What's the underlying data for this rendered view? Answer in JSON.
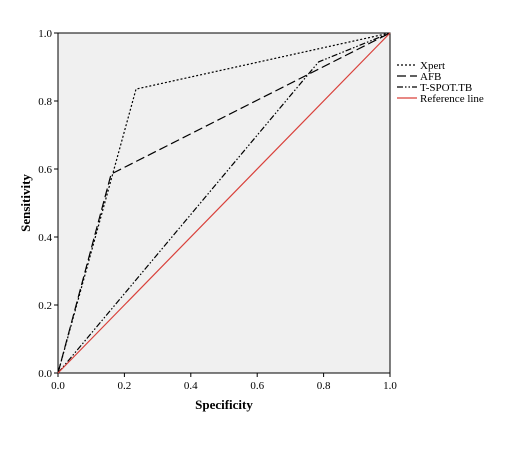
{
  "chart_data": {
    "type": "line",
    "title": "",
    "xlabel": "Specificity",
    "ylabel": "Sensitivity",
    "xlim": [
      0,
      1
    ],
    "ylim": [
      0,
      1
    ],
    "xticks": [
      "0.0",
      "0.2",
      "0.4",
      "0.6",
      "0.8",
      "1.0"
    ],
    "yticks": [
      "0.0",
      "0.2",
      "0.4",
      "0.6",
      "0.8",
      "1.0"
    ],
    "grid": false,
    "legend_position": "right",
    "plot_background": "#f0f0f0",
    "series": [
      {
        "name": "Xpert",
        "style": "dotted",
        "color": "#000000",
        "x": [
          0,
          0.235,
          1
        ],
        "y": [
          0,
          0.835,
          1
        ]
      },
      {
        "name": "AFB",
        "style": "dashed",
        "color": "#000000",
        "x": [
          0,
          0.16,
          1
        ],
        "y": [
          0,
          0.585,
          1
        ]
      },
      {
        "name": "T-SPOT.TB",
        "style": "dash-dot-dot",
        "color": "#000000",
        "x": [
          0,
          0.785,
          1
        ],
        "y": [
          0,
          0.915,
          1
        ]
      },
      {
        "name": "Reference line",
        "style": "solid",
        "color": "#d9403a",
        "x": [
          0,
          1
        ],
        "y": [
          0,
          1
        ]
      }
    ]
  }
}
